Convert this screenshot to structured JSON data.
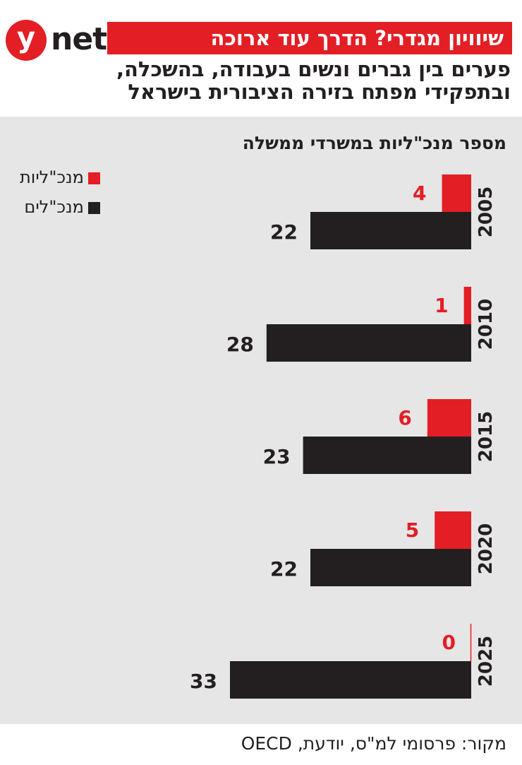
{
  "logo": {
    "y": "y",
    "net": "net"
  },
  "header": {
    "title": "שיוויון מגדרי? הדרך עוד ארוכה",
    "subtitle": "פערים בין גברים ונשים בעבודה, בהשכלה, ובתפקידי מפתח בזירה הציבורית בישראל"
  },
  "chart_data": {
    "type": "bar",
    "orientation": "horizontal",
    "title": "מספר מנכ\"ליות במשרדי ממשלה",
    "categories": [
      "2005",
      "2010",
      "2015",
      "2020",
      "2025"
    ],
    "series": [
      {
        "name": "מנכ\"ליות",
        "values": [
          4,
          1,
          6,
          5,
          0
        ],
        "color": "#e31e25"
      },
      {
        "name": "מנכ\"לים",
        "values": [
          22,
          28,
          23,
          22,
          33
        ],
        "color": "#231f20"
      }
    ],
    "xlim": [
      0,
      33
    ],
    "legend_position": "top-left",
    "grid": false
  },
  "source": "מקור: פרסומי למ\"ס, יודעת, OECD"
}
